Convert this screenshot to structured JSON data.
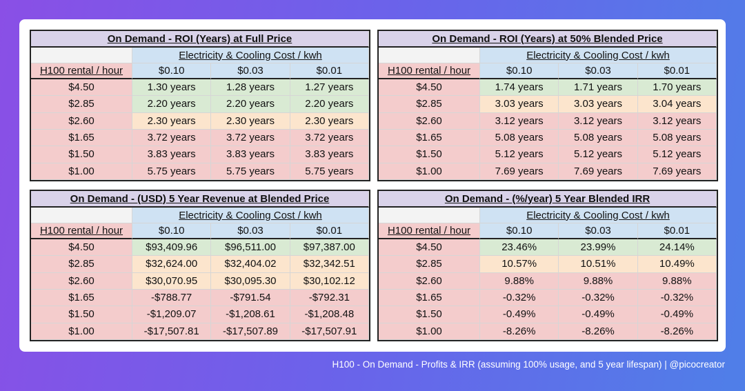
{
  "tables": [
    {
      "title": "On Demand - ROI (Years) at Full Price",
      "column_group": "Electricity & Cooling Cost / kwh",
      "row_header": "H100 rental / hour",
      "columns": [
        "$0.10",
        "$0.03",
        "$0.01"
      ],
      "rows": [
        {
          "label": "$4.50",
          "values": [
            "1.30 years",
            "1.28 years",
            "1.27 years"
          ],
          "color": "#d9ead3"
        },
        {
          "label": "$2.85",
          "values": [
            "2.20 years",
            "2.20 years",
            "2.20 years"
          ],
          "color": "#d9ead3"
        },
        {
          "label": "$2.60",
          "values": [
            "2.30 years",
            "2.30 years",
            "2.30 years"
          ],
          "color": "#fce5cd"
        },
        {
          "label": "$1.65",
          "values": [
            "3.72 years",
            "3.72 years",
            "3.72 years"
          ],
          "color": "#f4cccc"
        },
        {
          "label": "$1.50",
          "values": [
            "3.83 years",
            "3.83 years",
            "3.83 years"
          ],
          "color": "#f4cccc"
        },
        {
          "label": "$1.00",
          "values": [
            "5.75 years",
            "5.75 years",
            "5.75 years"
          ],
          "color": "#f4cccc"
        }
      ]
    },
    {
      "title": "On Demand - ROI (Years) at 50% Blended Price",
      "column_group": "Electricity & Cooling Cost / kwh",
      "row_header": "H100 rental / hour",
      "columns": [
        "$0.10",
        "$0.03",
        "$0.01"
      ],
      "rows": [
        {
          "label": "$4.50",
          "values": [
            "1.74 years",
            "1.71 years",
            "1.70 years"
          ],
          "color": "#d9ead3"
        },
        {
          "label": "$2.85",
          "values": [
            "3.03 years",
            "3.03 years",
            "3.04 years"
          ],
          "color": "#fce5cd"
        },
        {
          "label": "$2.60",
          "values": [
            "3.12 years",
            "3.12 years",
            "3.12 years"
          ],
          "color": "#f4cccc"
        },
        {
          "label": "$1.65",
          "values": [
            "5.08 years",
            "5.08 years",
            "5.08 years"
          ],
          "color": "#f4cccc"
        },
        {
          "label": "$1.50",
          "values": [
            "5.12 years",
            "5.12 years",
            "5.12 years"
          ],
          "color": "#f4cccc"
        },
        {
          "label": "$1.00",
          "values": [
            "7.69 years",
            "7.69 years",
            "7.69 years"
          ],
          "color": "#f4cccc"
        }
      ]
    },
    {
      "title": "On Demand - (USD) 5 Year Revenue at Blended Price",
      "column_group": "Electricity & Cooling Cost / kwh",
      "row_header": "H100 rental / hour",
      "columns": [
        "$0.10",
        "$0.03",
        "$0.01"
      ],
      "rows": [
        {
          "label": "$4.50",
          "values": [
            "$93,409.96",
            "$96,511.00",
            "$97,387.00"
          ],
          "color": "#d9ead3"
        },
        {
          "label": "$2.85",
          "values": [
            "$32,624.00",
            "$32,404.02",
            "$32,342.51"
          ],
          "color": "#fce5cd"
        },
        {
          "label": "$2.60",
          "values": [
            "$30,070.95",
            "$30,095.30",
            "$30,102.12"
          ],
          "color": "#fce5cd"
        },
        {
          "label": "$1.65",
          "values": [
            "-$788.77",
            "-$791.54",
            "-$792.31"
          ],
          "color": "#f4cccc"
        },
        {
          "label": "$1.50",
          "values": [
            "-$1,209.07",
            "-$1,208.61",
            "-$1,208.48"
          ],
          "color": "#f4cccc"
        },
        {
          "label": "$1.00",
          "values": [
            "-$17,507.81",
            "-$17,507.89",
            "-$17,507.91"
          ],
          "color": "#f4cccc"
        }
      ]
    },
    {
      "title": "On Demand - (%/year) 5 Year Blended IRR",
      "column_group": "Electricity & Cooling Cost / kwh",
      "row_header": "H100 rental / hour",
      "columns": [
        "$0.10",
        "$0.03",
        "$0.01"
      ],
      "rows": [
        {
          "label": "$4.50",
          "values": [
            "23.46%",
            "23.99%",
            "24.14%"
          ],
          "color": "#d9ead3"
        },
        {
          "label": "$2.85",
          "values": [
            "10.57%",
            "10.51%",
            "10.49%"
          ],
          "color": "#fce5cd"
        },
        {
          "label": "$2.60",
          "values": [
            "9.88%",
            "9.88%",
            "9.88%"
          ],
          "color": "#f4cccc"
        },
        {
          "label": "$1.65",
          "values": [
            "-0.32%",
            "-0.32%",
            "-0.32%"
          ],
          "color": "#f4cccc"
        },
        {
          "label": "$1.50",
          "values": [
            "-0.49%",
            "-0.49%",
            "-0.49%"
          ],
          "color": "#f4cccc"
        },
        {
          "label": "$1.00",
          "values": [
            "-8.26%",
            "-8.26%",
            "-8.26%"
          ],
          "color": "#f4cccc"
        }
      ]
    }
  ],
  "caption": "H100 - On Demand - Profits & IRR (assuming 100% usage, and 5 year lifespan) | @picocreator"
}
